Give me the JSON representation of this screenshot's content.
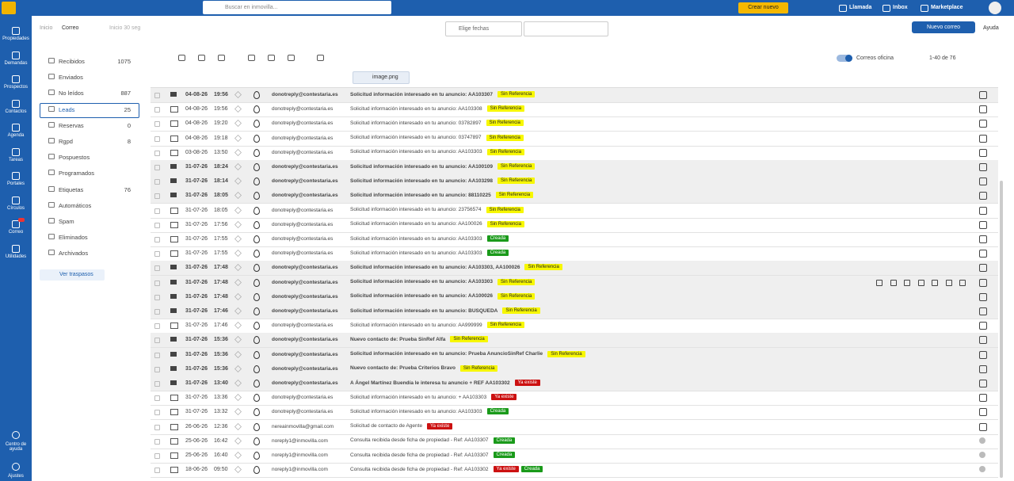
{
  "topbar": {
    "search_placeholder": "Buscar en inmovilla...",
    "create_button": "Crear nuevo",
    "links": [
      "Llamada",
      "Inbox",
      "Marketplace"
    ]
  },
  "sidebar": {
    "items": [
      "Propiedades",
      "Demandas",
      "Prospectos",
      "Contactos",
      "Agenda",
      "Tareas",
      "Portales",
      "Círculos",
      "Correo",
      "Utilidades"
    ],
    "bottom": [
      "Centro de ayuda",
      "Ajustes"
    ]
  },
  "header": {
    "breadcrumb": [
      "Inicio",
      "Correo"
    ],
    "refresh": "Inicio 30 seg",
    "date_filter": "Elige fechas",
    "new_mail": "Nuevo correo",
    "help": "Ayuda"
  },
  "folders": [
    {
      "name": "Recibidos",
      "count": "1075"
    },
    {
      "name": "Enviados"
    },
    {
      "name": "No leídos",
      "count": "887"
    },
    {
      "name": "Leads",
      "count": "25",
      "active": true
    },
    {
      "name": "Reservas",
      "count": "0"
    },
    {
      "name": "Rgpd",
      "count": "8"
    },
    {
      "name": "Pospuestos"
    },
    {
      "name": "Programados"
    },
    {
      "name": "Etiquetas",
      "count": "76"
    },
    {
      "name": "Automáticos"
    },
    {
      "name": "Spam"
    },
    {
      "name": "Eliminados"
    },
    {
      "name": "Archivados"
    }
  ],
  "transfers": "Ver traspasos",
  "toolbar": {
    "office_toggle": "Correos oficina",
    "pagination": "1-40 de 76",
    "attachment": "image.png"
  },
  "mails": [
    {
      "date": "04-08-26",
      "time": "19:56",
      "from": "donotreply@contestaria.es",
      "subject": "Solicitud información interesado en tu anuncio: AA103307",
      "tags": [
        {
          "label": "Sin Referencia",
          "color": "#f7f700"
        }
      ],
      "unread": true
    },
    {
      "date": "04-08-26",
      "time": "19:56",
      "from": "donotreply@contestaria.es",
      "subject": "Solicitud información interesado en tu anuncio: AA103308",
      "tags": [
        {
          "label": "Sin Referencia",
          "color": "#f7f700"
        }
      ],
      "unread": false
    },
    {
      "date": "04-08-26",
      "time": "19:20",
      "from": "donotreply@contestaria.es",
      "subject": "Solicitud información interesado en tu anuncio: 03782897",
      "tags": [
        {
          "label": "Sin Referencia",
          "color": "#f7f700"
        }
      ],
      "unread": false
    },
    {
      "date": "04-08-26",
      "time": "19:18",
      "from": "donotreply@contestaria.es",
      "subject": "Solicitud información interesado en tu anuncio: 03747897",
      "tags": [
        {
          "label": "Sin Referencia",
          "color": "#f7f700"
        }
      ],
      "unread": false
    },
    {
      "date": "03-08-26",
      "time": "13:50",
      "from": "donotreply@contestaria.es",
      "subject": "Solicitud información interesado en tu anuncio: AA103303",
      "tags": [
        {
          "label": "Sin Referencia",
          "color": "#f7f700"
        }
      ],
      "unread": false
    },
    {
      "date": "31-07-26",
      "time": "18:24",
      "from": "donotreply@contestaria.es",
      "subject": "Solicitud información interesado en tu anuncio: AA100109",
      "tags": [
        {
          "label": "Sin Referencia",
          "color": "#f7f700"
        }
      ],
      "unread": true
    },
    {
      "date": "31-07-26",
      "time": "18:14",
      "from": "donotreply@contestaria.es",
      "subject": "Solicitud información interesado en tu anuncio: AA103298",
      "tags": [
        {
          "label": "Sin Referencia",
          "color": "#f7f700"
        }
      ],
      "unread": true
    },
    {
      "date": "31-07-26",
      "time": "18:05",
      "from": "donotreply@contestaria.es",
      "subject": "Solicitud información interesado en tu anuncio: 88110225",
      "tags": [
        {
          "label": "Sin Referencia",
          "color": "#f7f700"
        }
      ],
      "unread": true
    },
    {
      "date": "31-07-26",
      "time": "18:05",
      "from": "donotreply@contestaria.es",
      "subject": "Solicitud información interesado en tu anuncio: 23756574",
      "tags": [
        {
          "label": "Sin Referencia",
          "color": "#f7f700"
        }
      ],
      "unread": false
    },
    {
      "date": "31-07-26",
      "time": "17:56",
      "from": "donotreply@contestaria.es",
      "subject": "Solicitud información interesado en tu anuncio: AA100026",
      "tags": [
        {
          "label": "Sin Referencia",
          "color": "#f7f700"
        }
      ],
      "unread": false
    },
    {
      "date": "31-07-26",
      "time": "17:55",
      "from": "donotreply@contestaria.es",
      "subject": "Solicitud información interesado en tu anuncio: AA103303",
      "tags": [
        {
          "label": "Creada",
          "color": "#1a9a1a"
        }
      ],
      "unread": false
    },
    {
      "date": "31-07-26",
      "time": "17:55",
      "from": "donotreply@contestaria.es",
      "subject": "Solicitud información interesado en tu anuncio: AA103303",
      "tags": [
        {
          "label": "Creada",
          "color": "#1a9a1a"
        }
      ],
      "unread": false
    },
    {
      "date": "31-07-26",
      "time": "17:48",
      "from": "donotreply@contestaria.es",
      "subject": "Solicitud información interesado en tu anuncio: AA103303, AA100026",
      "tags": [
        {
          "label": "Sin Referencia",
          "color": "#f7f700"
        }
      ],
      "unread": true
    },
    {
      "date": "31-07-26",
      "time": "17:48",
      "from": "donotreply@contestaria.es",
      "subject": "Solicitud información interesado en tu anuncio: AA103303",
      "tags": [
        {
          "label": "Sin Referencia",
          "color": "#f7f700"
        }
      ],
      "unread": true,
      "hover": true
    },
    {
      "date": "31-07-26",
      "time": "17:48",
      "from": "donotreply@contestaria.es",
      "subject": "Solicitud información interesado en tu anuncio: AA100026",
      "tags": [
        {
          "label": "Sin Referencia",
          "color": "#f7f700"
        }
      ],
      "unread": true
    },
    {
      "date": "31-07-26",
      "time": "17:46",
      "from": "donotreply@contestaria.es",
      "subject": "Solicitud información interesado en tu anuncio: BUSQUEDA",
      "tags": [
        {
          "label": "Sin Referencia",
          "color": "#f7f700"
        }
      ],
      "unread": true
    },
    {
      "date": "31-07-26",
      "time": "17:46",
      "from": "donotreply@contestaria.es",
      "subject": "Solicitud información interesado en tu anuncio: AA999999",
      "tags": [
        {
          "label": "Sin Referencia",
          "color": "#f7f700"
        }
      ],
      "unread": false
    },
    {
      "date": "31-07-26",
      "time": "15:36",
      "from": "donotreply@contestaria.es",
      "subject": "Nuevo contacto de: Prueba SinRef Alfa",
      "tags": [
        {
          "label": "Sin Referencia",
          "color": "#f7f700"
        }
      ],
      "unread": true
    },
    {
      "date": "31-07-26",
      "time": "15:36",
      "from": "donotreply@contestaria.es",
      "subject": "Solicitud información interesado en tu anuncio: Prueba AnuncioSinRef Charlie",
      "tags": [
        {
          "label": "Sin Referencia",
          "color": "#f7f700"
        }
      ],
      "unread": true
    },
    {
      "date": "31-07-26",
      "time": "15:36",
      "from": "donotreply@contestaria.es",
      "subject": "Nuevo contacto de: Prueba Criterios Bravo",
      "tags": [
        {
          "label": "Sin Referencia",
          "color": "#f7f700"
        }
      ],
      "unread": true
    },
    {
      "date": "31-07-26",
      "time": "13:40",
      "from": "donotreply@contestaria.es",
      "subject": "A Ángel Martínez Buendía le interesa tu anuncio + REF AA103302",
      "tags": [
        {
          "label": "Ya existe",
          "color": "#cc1111"
        }
      ],
      "unread": true
    },
    {
      "date": "31-07-26",
      "time": "13:36",
      "from": "donotreply@contestaria.es",
      "subject": "Solicitud información interesado en tu anuncio: + AA103303",
      "tags": [
        {
          "label": "Ya existe",
          "color": "#cc1111"
        }
      ],
      "unread": false
    },
    {
      "date": "31-07-26",
      "time": "13:32",
      "from": "donotreply@contestaria.es",
      "subject": "Solicitud información interesado en tu anuncio: AA103303",
      "tags": [
        {
          "label": "Creada",
          "color": "#1a9a1a"
        }
      ],
      "unread": false
    },
    {
      "date": "26-06-26",
      "time": "12:36",
      "from": "nereainmovilla@gmail.com",
      "subject": "Solicitud de contacto de Agente",
      "tags": [
        {
          "label": "Ya existe",
          "color": "#cc1111"
        }
      ],
      "unread": false
    },
    {
      "date": "25-06-26",
      "time": "16:42",
      "from": "noreply1@inmovilla.com",
      "subject": "Consulta recibida desde ficha de propiedad - Ref: AA103307",
      "tags": [
        {
          "label": "Creada",
          "color": "#1a9a1a"
        }
      ],
      "unread": false
    },
    {
      "date": "25-06-26",
      "time": "16:40",
      "from": "noreply1@inmovilla.com",
      "subject": "Consulta recibida desde ficha de propiedad - Ref: AA103307",
      "tags": [
        {
          "label": "Creada",
          "color": "#1a9a1a"
        }
      ],
      "unread": false
    },
    {
      "date": "18-06-26",
      "time": "09:50",
      "from": "noreply1@inmovilla.com",
      "subject": "Consulta recibida desde ficha de propiedad - Ref: AA103302",
      "tags": [
        {
          "label": "Ya existe",
          "color": "#cc1111"
        },
        {
          "label": "Creada",
          "color": "#1a9a1a"
        }
      ],
      "unread": false
    }
  ]
}
